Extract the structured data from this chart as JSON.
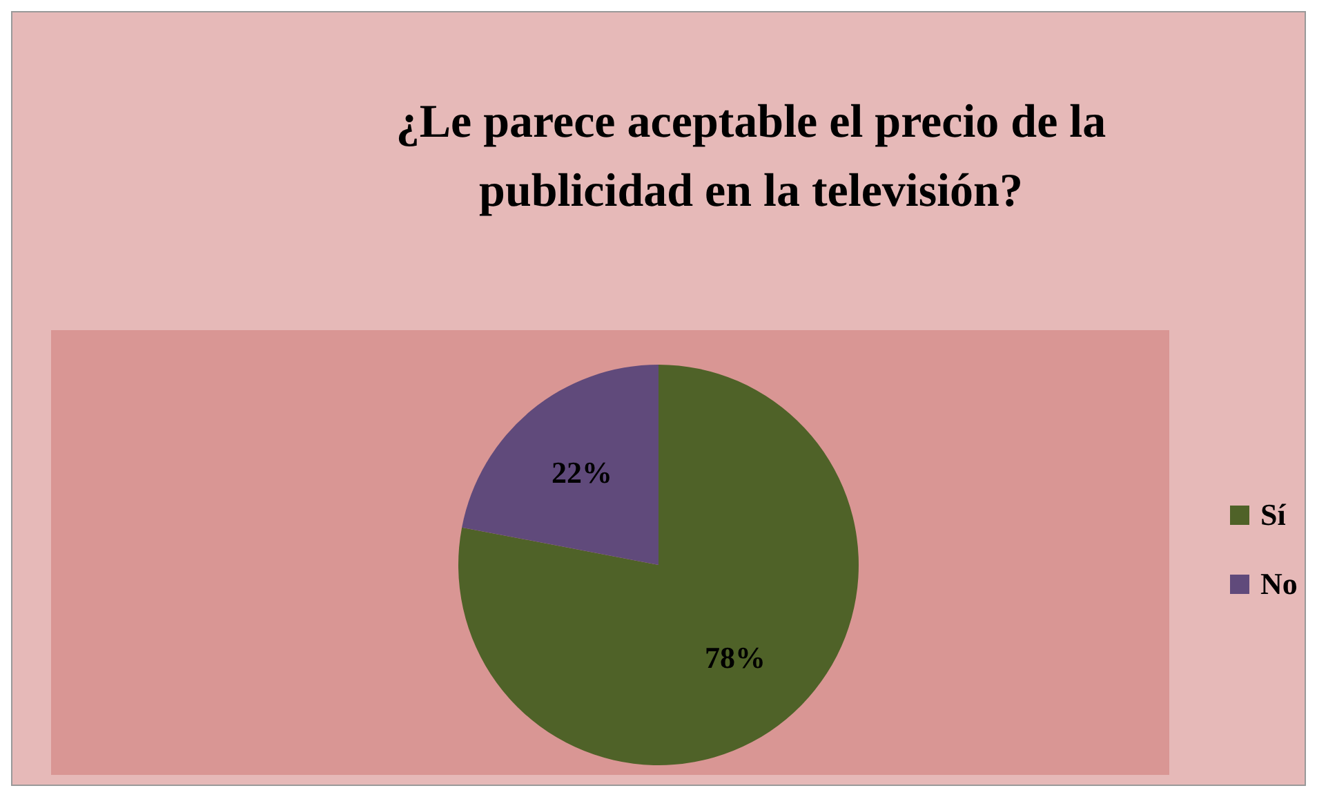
{
  "chart_data": {
    "type": "pie",
    "title": "¿Le parece aceptable el precio de la publicidad en la televisión?",
    "categories": [
      "Sí",
      "No"
    ],
    "values": [
      78,
      22
    ],
    "colors": [
      "#4f6228",
      "#604a7b"
    ],
    "value_labels": [
      "78%",
      "22%"
    ],
    "legend": "right"
  }
}
